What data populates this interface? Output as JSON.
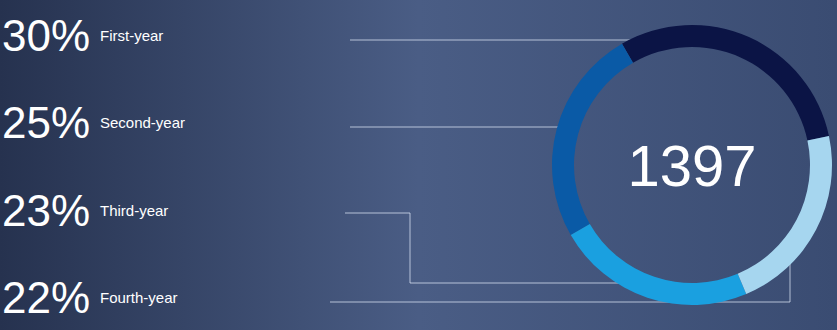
{
  "chart_data": {
    "type": "donut",
    "categories": [
      "First-year",
      "Second-year",
      "Third-year",
      "Fourth-year"
    ],
    "values": [
      30,
      25,
      23,
      22
    ],
    "value_labels": [
      "30%",
      "25%",
      "23%",
      "22%"
    ],
    "colors": [
      "#0b1445",
      "#0a5aa6",
      "#1aa0e0",
      "#a6d6ef"
    ],
    "data_labels": true,
    "center_label": "1397"
  }
}
